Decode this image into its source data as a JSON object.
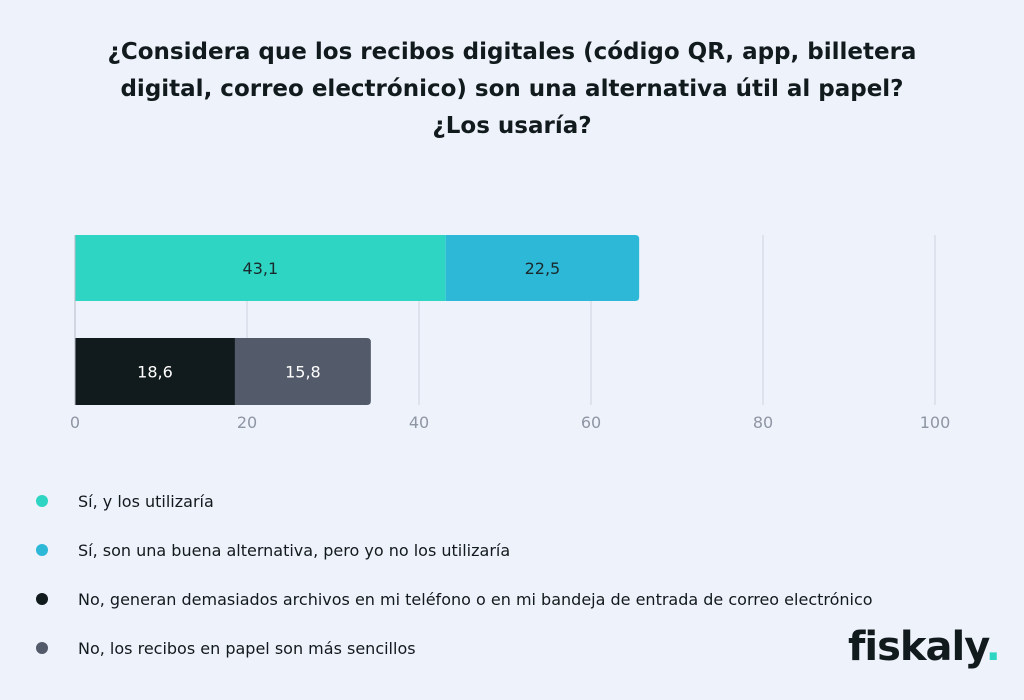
{
  "title_lines": [
    "¿Considera que los recibos digitales (código QR, app, billetera",
    "digital, correo electrónico) son una alternativa útil al papel?",
    "¿Los usaría?"
  ],
  "chart_data": {
    "type": "bar",
    "orientation": "horizontal",
    "stacked": true,
    "title": "¿Considera que los recibos digitales (código QR, app, billetera digital, correo electrónico) son una alternativa útil al papel? ¿Los usaría?",
    "xlim": [
      0,
      100
    ],
    "x_ticks": [
      0,
      20,
      40,
      60,
      80,
      100
    ],
    "x_tick_labels": [
      "0",
      "20",
      "40",
      "60",
      "80",
      "100"
    ],
    "grid": "vertical",
    "legend_position": "bottom-left",
    "value_labels": [
      "43,1",
      "22,5",
      "18,6",
      "15,8"
    ],
    "series": [
      {
        "name": "Sí, y los utilizaría",
        "color": "#2fd5c3",
        "values": [
          43.1,
          0
        ]
      },
      {
        "name": "Sí, son una buena alternativa, pero yo no los utilizaría",
        "color": "#2eb8d8",
        "values": [
          22.5,
          0
        ]
      },
      {
        "name": "No, generan demasiados archivos en mi teléfono o en mi bandeja de entrada de correo electrónico",
        "color": "#111a1c",
        "values": [
          0,
          18.6
        ]
      },
      {
        "name": "No, los recibos en papel son más sencillos",
        "color": "#535a6a",
        "values": [
          0,
          15.8
        ]
      }
    ]
  },
  "legend": [
    {
      "label": "Sí, y los utilizaría",
      "color": "#2fd5c3"
    },
    {
      "label": "Sí, son una buena alternativa, pero yo no los utilizaría",
      "color": "#2eb8d8"
    },
    {
      "label": "No, generan demasiados archivos en mi teléfono o en mi bandeja de entrada de correo electrónico",
      "color": "#111a1c"
    },
    {
      "label": "No, los recibos en papel son más sencillos",
      "color": "#535a6a"
    }
  ],
  "logo": {
    "text": "fiskaly",
    "mark": ".",
    "mark_color": "#2fd5c3"
  }
}
